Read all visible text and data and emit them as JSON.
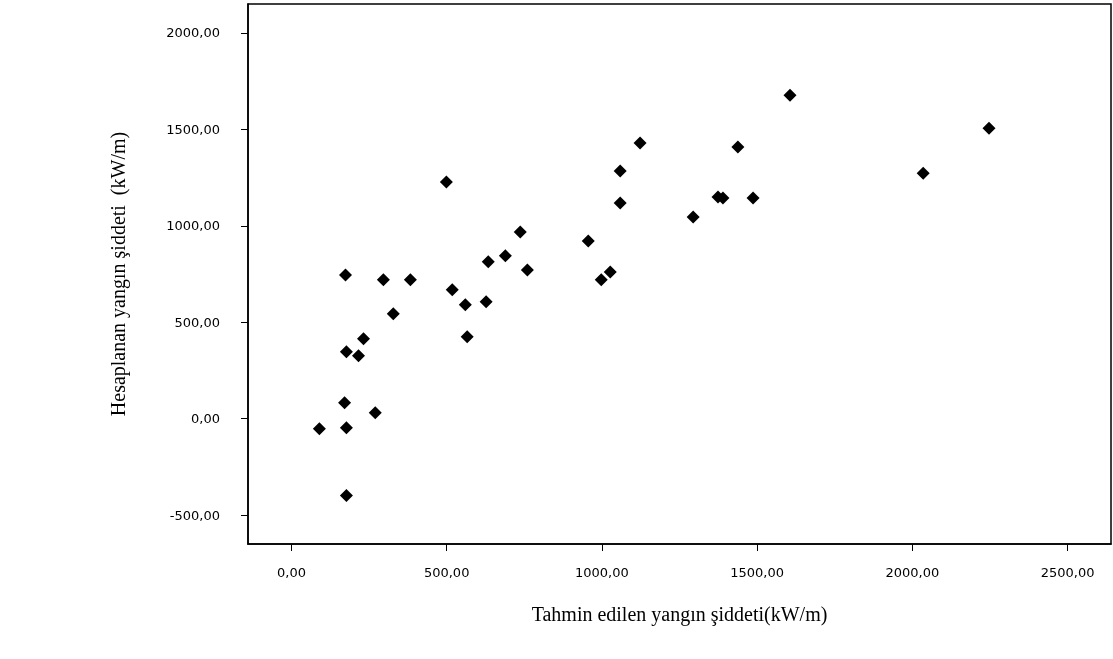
{
  "chart_data": {
    "type": "scatter",
    "xlabel": "Tahmin edilen yangın şiddeti(kW/m)",
    "ylabel": "Hesaplanan yangın şiddeti  (kW/m)",
    "x": [
      90,
      171,
      177,
      177,
      177,
      216,
      232,
      174,
      270,
      296,
      328,
      383,
      499,
      518,
      560,
      566,
      627,
      634,
      689,
      737,
      760,
      956,
      998,
      1027,
      1059,
      1059,
      1123,
      1294,
      1374,
      1390,
      1438,
      1487,
      1606,
      2035,
      2247
    ],
    "values": [
      -52,
      83,
      -47,
      -399,
      347,
      326,
      414,
      745,
      31,
      720,
      544,
      720,
      1227,
      668,
      590,
      425,
      606,
      813,
      844,
      968,
      771,
      921,
      720,
      761,
      1118,
      1284,
      1429,
      1046,
      1149,
      1144,
      1408,
      1144,
      1677,
      1273,
      1506
    ],
    "color": "#000000",
    "marker": "diamond",
    "grid": false,
    "xlim": [
      -140,
      2640
    ],
    "ylim": [
      -650,
      2150
    ],
    "xticks": [
      {
        "value": 0,
        "label": "0,00"
      },
      {
        "value": 500,
        "label": "500,00"
      },
      {
        "value": 1000,
        "label": "1000,00"
      },
      {
        "value": 1500,
        "label": "1500,00"
      },
      {
        "value": 2000,
        "label": "2000,00"
      },
      {
        "value": 2500,
        "label": "2500,00"
      }
    ],
    "yticks": [
      {
        "value": -500,
        "label": "-500,00"
      },
      {
        "value": 0,
        "label": "0,00"
      },
      {
        "value": 500,
        "label": "500,00"
      },
      {
        "value": 1000,
        "label": "1000,00"
      },
      {
        "value": 1500,
        "label": "1500,00"
      },
      {
        "value": 2000,
        "label": "2000,00"
      }
    ]
  }
}
